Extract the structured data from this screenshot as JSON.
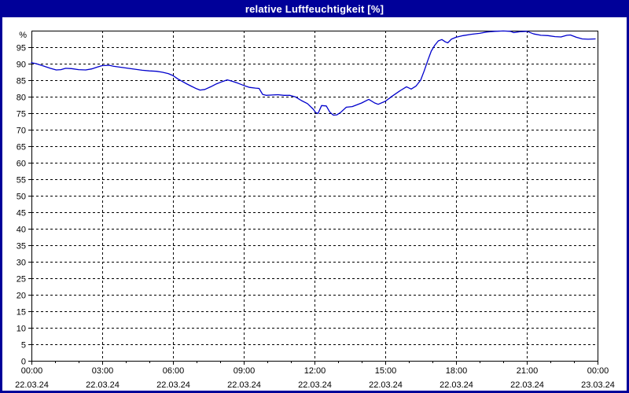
{
  "window": {
    "title": "relative Luftfeuchtigkeit [%]"
  },
  "colors": {
    "frame": "#000099",
    "title_text": "#ffffff",
    "plot_background": "#ffffff",
    "grid": "#000000",
    "axis_text": "#000000",
    "line": "#0000cc"
  },
  "chart_data": {
    "type": "line",
    "title": "relative Luftfeuchtigkeit [%]",
    "y_unit_label": "%",
    "ylim": [
      0,
      100
    ],
    "y_ticks": [
      0,
      5,
      10,
      15,
      20,
      25,
      30,
      35,
      40,
      45,
      50,
      55,
      60,
      65,
      70,
      75,
      80,
      85,
      90,
      95
    ],
    "x_range_hours": [
      0,
      24
    ],
    "x_minor_tick_hours": 1,
    "grid": true,
    "legend": "none",
    "x_ticks": [
      {
        "hour": 0,
        "time": "00:00",
        "date": "22.03.24"
      },
      {
        "hour": 3,
        "time": "03:00",
        "date": "22.03.24"
      },
      {
        "hour": 6,
        "time": "06:00",
        "date": "22.03.24"
      },
      {
        "hour": 9,
        "time": "09:00",
        "date": "22.03.24"
      },
      {
        "hour": 12,
        "time": "12:00",
        "date": "22.03.24"
      },
      {
        "hour": 15,
        "time": "15:00",
        "date": "22.03.24"
      },
      {
        "hour": 18,
        "time": "18:00",
        "date": "22.03.24"
      },
      {
        "hour": 21,
        "time": "21:00",
        "date": "22.03.24"
      },
      {
        "hour": 24,
        "time": "00:00",
        "date": "23.03.24"
      }
    ],
    "series": [
      {
        "name": "relative Luftfeuchtigkeit",
        "points": [
          [
            0.0,
            90.3
          ],
          [
            0.2,
            90.0
          ],
          [
            0.5,
            89.3
          ],
          [
            0.8,
            88.6
          ],
          [
            1.05,
            88.1
          ],
          [
            1.25,
            88.2
          ],
          [
            1.45,
            88.6
          ],
          [
            1.7,
            88.5
          ],
          [
            2.0,
            88.2
          ],
          [
            2.3,
            88.1
          ],
          [
            2.55,
            88.4
          ],
          [
            2.8,
            89.0
          ],
          [
            3.0,
            89.4
          ],
          [
            3.3,
            89.5
          ],
          [
            3.5,
            89.2
          ],
          [
            3.8,
            88.9
          ],
          [
            4.1,
            88.6
          ],
          [
            4.4,
            88.3
          ],
          [
            4.7,
            88.0
          ],
          [
            5.0,
            87.8
          ],
          [
            5.3,
            87.7
          ],
          [
            5.55,
            87.4
          ],
          [
            5.8,
            87.0
          ],
          [
            6.0,
            86.4
          ],
          [
            6.2,
            85.4
          ],
          [
            6.4,
            84.6
          ],
          [
            6.6,
            83.8
          ],
          [
            6.8,
            83.1
          ],
          [
            7.0,
            82.4
          ],
          [
            7.15,
            82.0
          ],
          [
            7.35,
            82.2
          ],
          [
            7.6,
            83.0
          ],
          [
            7.85,
            83.9
          ],
          [
            8.1,
            84.6
          ],
          [
            8.3,
            85.1
          ],
          [
            8.5,
            84.7
          ],
          [
            8.75,
            84.1
          ],
          [
            9.0,
            83.4
          ],
          [
            9.25,
            82.8
          ],
          [
            9.5,
            82.6
          ],
          [
            9.65,
            82.5
          ],
          [
            9.8,
            80.7
          ],
          [
            9.95,
            80.4
          ],
          [
            10.2,
            80.5
          ],
          [
            10.45,
            80.6
          ],
          [
            10.7,
            80.4
          ],
          [
            10.95,
            80.4
          ],
          [
            11.2,
            79.9
          ],
          [
            11.45,
            78.8
          ],
          [
            11.7,
            77.9
          ],
          [
            11.95,
            76.2
          ],
          [
            12.05,
            75.2
          ],
          [
            12.15,
            74.9
          ],
          [
            12.3,
            77.3
          ],
          [
            12.5,
            77.2
          ],
          [
            12.65,
            75.3
          ],
          [
            12.8,
            74.4
          ],
          [
            12.95,
            74.5
          ],
          [
            13.1,
            75.2
          ],
          [
            13.35,
            76.8
          ],
          [
            13.6,
            77.0
          ],
          [
            14.0,
            78.1
          ],
          [
            14.3,
            79.2
          ],
          [
            14.55,
            78.1
          ],
          [
            14.7,
            77.7
          ],
          [
            15.0,
            78.6
          ],
          [
            15.3,
            80.2
          ],
          [
            15.65,
            81.9
          ],
          [
            15.9,
            83.0
          ],
          [
            16.1,
            82.3
          ],
          [
            16.3,
            83.2
          ],
          [
            16.5,
            85.0
          ],
          [
            16.65,
            87.8
          ],
          [
            16.8,
            90.9
          ],
          [
            16.95,
            93.8
          ],
          [
            17.1,
            95.6
          ],
          [
            17.25,
            96.9
          ],
          [
            17.4,
            97.3
          ],
          [
            17.55,
            96.6
          ],
          [
            17.65,
            96.3
          ],
          [
            17.8,
            97.4
          ],
          [
            18.0,
            98.0
          ],
          [
            18.3,
            98.5
          ],
          [
            18.65,
            98.9
          ],
          [
            19.0,
            99.2
          ],
          [
            19.3,
            99.6
          ],
          [
            19.65,
            99.8
          ],
          [
            20.0,
            99.9
          ],
          [
            20.3,
            99.8
          ],
          [
            20.45,
            99.4
          ],
          [
            20.7,
            99.7
          ],
          [
            21.0,
            99.8
          ],
          [
            21.3,
            99.0
          ],
          [
            21.6,
            98.6
          ],
          [
            21.9,
            98.5
          ],
          [
            22.2,
            98.2
          ],
          [
            22.45,
            98.1
          ],
          [
            22.7,
            98.6
          ],
          [
            22.85,
            98.7
          ],
          [
            23.1,
            98.0
          ],
          [
            23.35,
            97.5
          ],
          [
            23.6,
            97.4
          ],
          [
            23.9,
            97.5
          ]
        ]
      }
    ]
  }
}
